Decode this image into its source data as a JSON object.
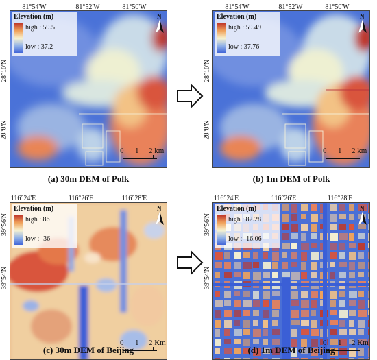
{
  "panels": {
    "a": {
      "caption": "(a) 30m DEM of Polk",
      "top_ticks": [
        "81°54'W",
        "81°52'W",
        "81°50'W"
      ],
      "left_ticks": [
        "28°10'N",
        "28°8'N"
      ],
      "legend": {
        "title": "Elevation (m)",
        "high": "high : 59.5",
        "low": "low : 37.2"
      },
      "north": "N",
      "scale": {
        "zero": "0",
        "one": "1",
        "two": "2 km"
      }
    },
    "b": {
      "caption": "(b) 1m DEM of Polk",
      "top_ticks": [
        "81°54'W",
        "81°52'W",
        "81°50'W"
      ],
      "left_ticks": [
        "28°10'N",
        "28°8'N"
      ],
      "legend": {
        "title": "Elevation (m)",
        "high": "high : 59.49",
        "low": "low : 37.76"
      },
      "north": "N",
      "scale": {
        "zero": "0",
        "one": "1",
        "two": "2 km"
      }
    },
    "c": {
      "caption": "(c) 30m DEM of Beijing",
      "top_ticks": [
        "116°24'E",
        "116°26'E",
        "116°28'E"
      ],
      "left_ticks": [
        "39°56'N",
        "39°54'N"
      ],
      "legend": {
        "title": "Elevation (m)",
        "high": "high : 86",
        "low": "low : -36"
      },
      "north": "N",
      "scale": {
        "zero": "0",
        "one": "1",
        "two": "2 Km"
      }
    },
    "d": {
      "caption": "(d) 1m DEM of Beijing",
      "top_ticks": [
        "116°24'E",
        "116°26'E",
        "116°28'E"
      ],
      "left_ticks": [
        "39°56'N",
        "39°54'N"
      ],
      "legend": {
        "title": "Elevation (m)",
        "high": "high : 82.28",
        "low": "low : -16.06"
      },
      "north": "N",
      "scale": {
        "zero": "0",
        "one": "1",
        "two": "2 Km"
      }
    }
  },
  "colors": {
    "high": "#c0392b",
    "mid": "#f7f2d0",
    "low": "#3b5fd6"
  },
  "icons": {
    "transition": "hollow-right-arrow-icon",
    "north": "north-arrow-icon"
  }
}
